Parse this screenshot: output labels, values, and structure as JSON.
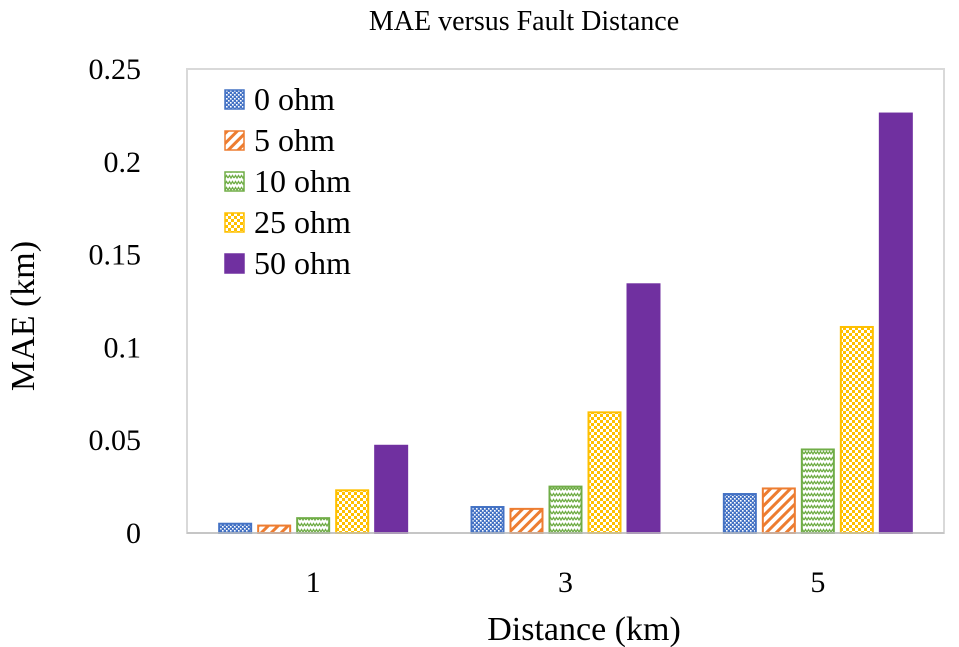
{
  "chart_data": {
    "type": "bar",
    "title": "MAE versus Fault Distance",
    "xlabel": "Distance (km)",
    "ylabel": "MAE (km)",
    "categories": [
      "1",
      "3",
      "5"
    ],
    "ylim": [
      0,
      0.25
    ],
    "yticks": [
      "0",
      "0.05",
      "0.1",
      "0.15",
      "0.2",
      "0.25"
    ],
    "legend_position": "top-left",
    "grid": false,
    "series": [
      {
        "name": "0 ohm",
        "values": [
          0.005,
          0.014,
          0.021
        ],
        "color": "#4472C4",
        "pattern": "dots"
      },
      {
        "name": "5 ohm",
        "values": [
          0.004,
          0.013,
          0.024
        ],
        "color": "#ED7D31",
        "pattern": "diagonal"
      },
      {
        "name": "10 ohm",
        "values": [
          0.008,
          0.025,
          0.045
        ],
        "color": "#70AD47",
        "pattern": "zigzag"
      },
      {
        "name": "25 ohm",
        "values": [
          0.023,
          0.065,
          0.111
        ],
        "color": "#FFC000",
        "pattern": "checker"
      },
      {
        "name": "50 ohm",
        "values": [
          0.047,
          0.134,
          0.226
        ],
        "color": "#7030A0",
        "pattern": "solid"
      }
    ]
  }
}
